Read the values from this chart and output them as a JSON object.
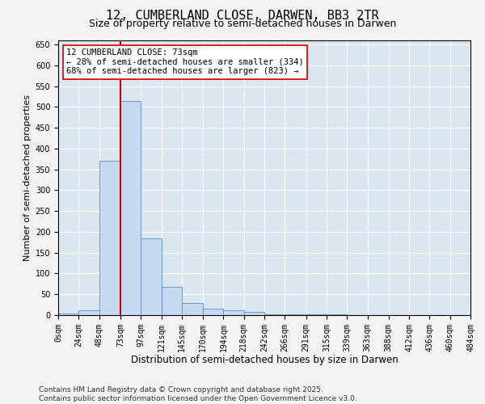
{
  "title": "12, CUMBERLAND CLOSE, DARWEN, BB3 2TR",
  "subtitle": "Size of property relative to semi-detached houses in Darwen",
  "xlabel": "Distribution of semi-detached houses by size in Darwen",
  "ylabel": "Number of semi-detached properties",
  "bin_edges": [
    0,
    24,
    48,
    73,
    97,
    121,
    145,
    170,
    194,
    218,
    242,
    266,
    291,
    315,
    339,
    363,
    388,
    412,
    436,
    460,
    484
  ],
  "bar_heights": [
    3,
    12,
    370,
    515,
    185,
    67,
    30,
    16,
    11,
    8,
    2,
    1,
    1,
    1,
    0,
    0,
    0,
    0,
    0,
    0
  ],
  "bar_color": "#c6d9f0",
  "bar_edge_color": "#5b8ec4",
  "property_size": 73,
  "vline_color": "#cc0000",
  "annotation_text": "12 CUMBERLAND CLOSE: 73sqm\n← 28% of semi-detached houses are smaller (334)\n68% of semi-detached houses are larger (823) →",
  "annotation_box_color": "#ffffff",
  "annotation_box_edge": "#cc0000",
  "ylim": [
    0,
    660
  ],
  "yticks": [
    0,
    50,
    100,
    150,
    200,
    250,
    300,
    350,
    400,
    450,
    500,
    550,
    600,
    650
  ],
  "background_color": "#dce6f1",
  "grid_color": "#ffffff",
  "fig_background_color": "#f2f2f2",
  "footer": "Contains HM Land Registry data © Crown copyright and database right 2025.\nContains public sector information licensed under the Open Government Licence v3.0.",
  "title_fontsize": 11,
  "subtitle_fontsize": 9,
  "xlabel_fontsize": 8.5,
  "ylabel_fontsize": 8,
  "tick_fontsize": 7,
  "annotation_fontsize": 7.5,
  "footer_fontsize": 6.5
}
